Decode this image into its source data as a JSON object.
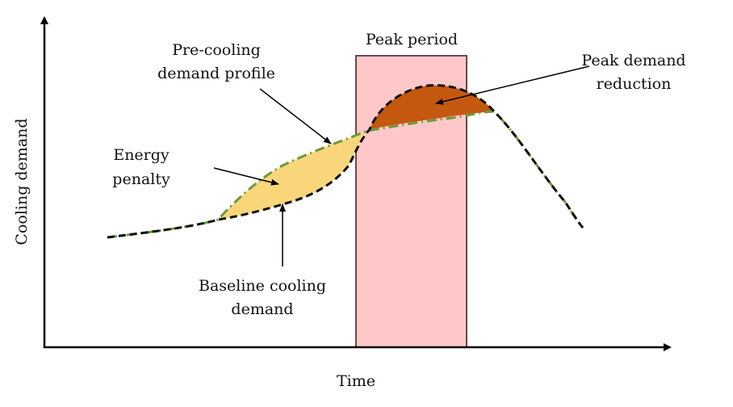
{
  "chart_data": {
    "type": "line",
    "title": "",
    "xlabel": "Time",
    "ylabel": "Cooling demand",
    "grid": false,
    "axis_ticks": false,
    "regions": [
      {
        "name": "peak_period",
        "label": "Peak period",
        "x_range": [
          0.5,
          0.68
        ]
      }
    ],
    "series": [
      {
        "name": "Baseline cooling demand",
        "style": "dashed",
        "x": [
          0.0,
          0.18,
          0.28,
          0.37,
          0.4,
          0.42,
          0.5,
          0.57,
          0.62,
          0.68,
          0.75,
          0.8,
          0.83
        ],
        "y": [
          0.33,
          0.38,
          0.43,
          0.5,
          0.57,
          0.66,
          0.78,
          0.8,
          0.79,
          0.73,
          0.56,
          0.44,
          0.37
        ]
      },
      {
        "name": "Pre-cooling demand profile",
        "style": "dash-dot",
        "x": [
          0.0,
          0.18,
          0.22,
          0.29,
          0.37,
          0.42,
          0.5,
          0.6,
          0.62,
          0.68,
          0.75,
          0.8,
          0.83
        ],
        "y": [
          0.33,
          0.38,
          0.46,
          0.55,
          0.61,
          0.65,
          0.68,
          0.71,
          0.7,
          0.73,
          0.56,
          0.44,
          0.37
        ]
      }
    ],
    "annotations": [
      {
        "id": "precooling",
        "text_lines": [
          "Pre-cooling",
          "demand profile"
        ]
      },
      {
        "id": "energy_penalty",
        "text_lines": [
          "Energy",
          "penalty"
        ]
      },
      {
        "id": "baseline",
        "text_lines": [
          "Baseline cooling",
          "demand"
        ]
      },
      {
        "id": "peak_reduction",
        "text_lines": [
          "Peak demand",
          "reduction"
        ]
      }
    ],
    "colors": {
      "axis": "#000000",
      "baseline": "#111111",
      "precooling": "#6a9a3a",
      "energy_penalty_fill": "#f9d67a",
      "peak_reduction_fill": "#c4580f",
      "peak_period_fill": "#ffc8c8",
      "peak_period_border": "#6b4a4a"
    }
  }
}
